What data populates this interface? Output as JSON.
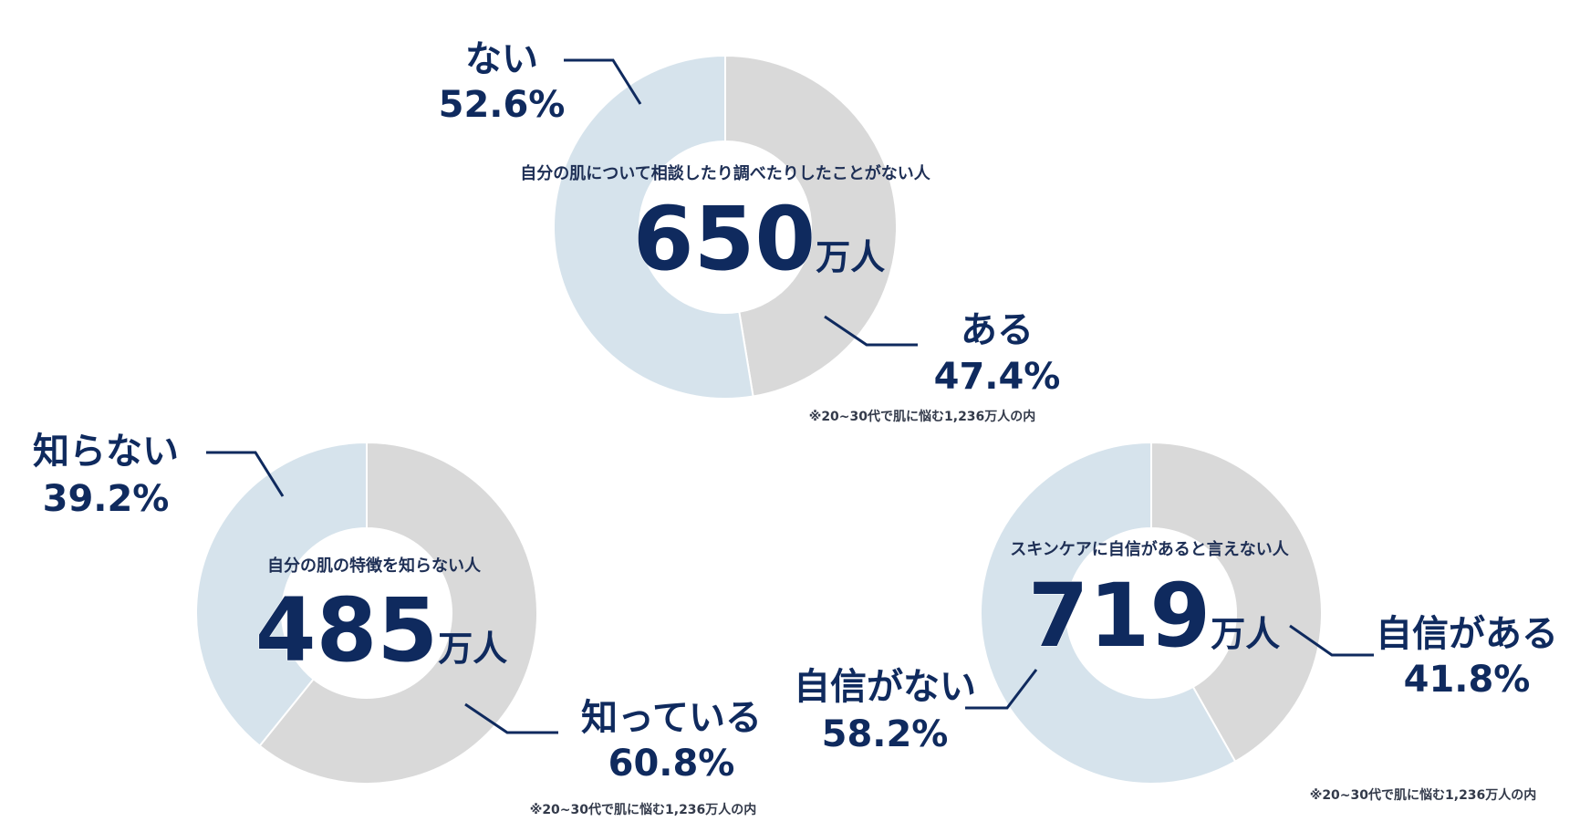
{
  "colors": {
    "light_blue": "#d6e3ec",
    "light_gray": "#d9d9d9",
    "navy": "#0f2a5e",
    "divider": "#ffffff"
  },
  "chart_data": [
    {
      "type": "pie",
      "caption": "自分の肌について相談したり調べたりしたことがない人",
      "center_value": "650",
      "center_unit": "万人",
      "note": "※20~30代で肌に悩む1,236万人の内",
      "slices": [
        {
          "label": "ある",
          "value": 47.4,
          "value_text": "47.4%",
          "color": "#d9d9d9"
        },
        {
          "label": "ない",
          "value": 52.6,
          "value_text": "52.6%",
          "color": "#d6e3ec"
        }
      ]
    },
    {
      "type": "pie",
      "caption": "自分の肌の特徴を知らない人",
      "center_value": "485",
      "center_unit": "万人",
      "note": "※20~30代で肌に悩む1,236万人の内",
      "slices": [
        {
          "label": "知っている",
          "value": 60.8,
          "value_text": "60.8%",
          "color": "#d9d9d9"
        },
        {
          "label": "知らない",
          "value": 39.2,
          "value_text": "39.2%",
          "color": "#d6e3ec"
        }
      ]
    },
    {
      "type": "pie",
      "caption": "スキンケアに自信があると言えない人",
      "center_value": "719",
      "center_unit": "万人",
      "note": "※20~30代で肌に悩む1,236万人の内",
      "slices": [
        {
          "label": "自信がある",
          "value": 41.8,
          "value_text": "41.8%",
          "color": "#d9d9d9"
        },
        {
          "label": "自信がない",
          "value": 58.2,
          "value_text": "58.2%",
          "color": "#d6e3ec"
        }
      ]
    }
  ]
}
